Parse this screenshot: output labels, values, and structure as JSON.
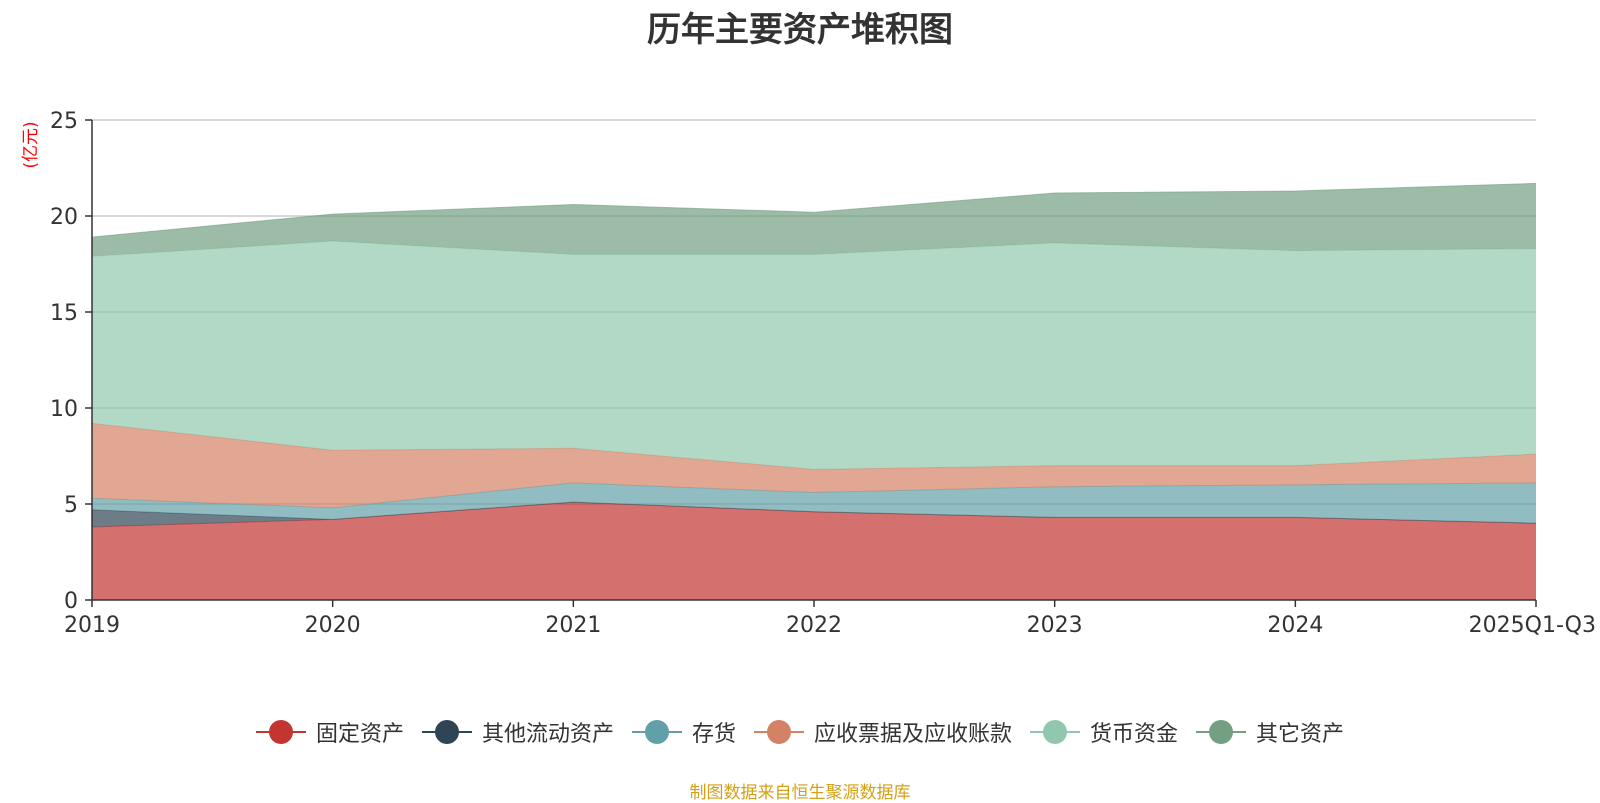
{
  "chart_data": {
    "type": "area",
    "stacked": true,
    "title": "历年主要资产堆积图",
    "ylabel": "(亿元)",
    "xlabel": "",
    "categories": [
      "2019",
      "2020",
      "2021",
      "2022",
      "2023",
      "2024",
      "2025Q1-Q3"
    ],
    "ylim": [
      0,
      25
    ],
    "yticks": [
      "0",
      "5",
      "10",
      "15",
      "20",
      "25"
    ],
    "grid": true,
    "legend_position": "bottom",
    "series": [
      {
        "name": "固定资产",
        "color": "#c23531",
        "values": [
          3.8,
          4.2,
          5.1,
          4.6,
          4.3,
          4.3,
          4.0
        ]
      },
      {
        "name": "其他流动资产",
        "color": "#2f4554",
        "values": [
          0.9,
          0.0,
          0.0,
          0.0,
          0.0,
          0.0,
          0.0
        ]
      },
      {
        "name": "存货",
        "color": "#61a0a8",
        "values": [
          0.6,
          0.6,
          1.0,
          1.0,
          1.6,
          1.7,
          2.1
        ]
      },
      {
        "name": "应收票据及应收账款",
        "color": "#d48265",
        "values": [
          3.9,
          3.0,
          1.8,
          1.2,
          1.1,
          1.0,
          1.5
        ]
      },
      {
        "name": "货币资金",
        "color": "#91c7ae",
        "values": [
          8.7,
          10.9,
          10.1,
          11.2,
          11.6,
          11.2,
          10.7
        ]
      },
      {
        "name": "其它资产",
        "color": "#749f83",
        "values": [
          1.0,
          1.4,
          2.6,
          2.2,
          2.6,
          3.1,
          3.4
        ]
      }
    ]
  },
  "source_text": "制图数据来自恒生聚源数据库"
}
